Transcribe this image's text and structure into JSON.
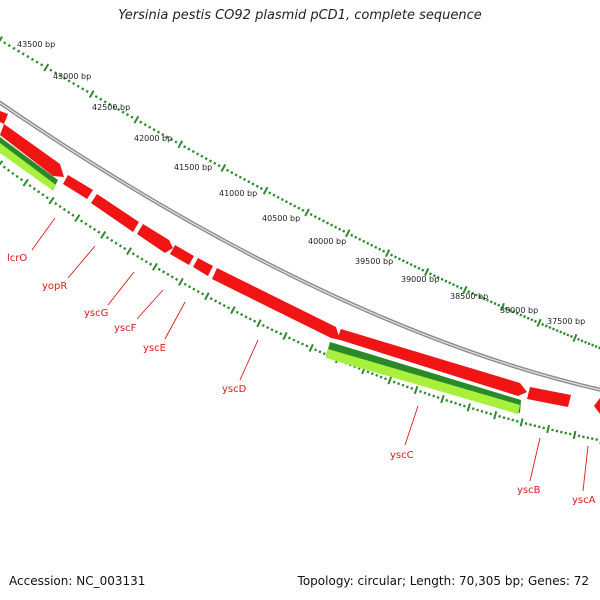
{
  "title": "Yersinia pestis CO92 plasmid pCD1, complete sequence",
  "footer": {
    "accession": "Accession: NC_003131",
    "summary": "Topology: circular; Length: 70,305 bp; Genes: 72"
  },
  "colors": {
    "backbone": "#8c8c8c",
    "gene_forward": "#f01414",
    "gene_reverse_light": "#a8f03c",
    "gene_reverse_dark": "#2a8a2a",
    "scale": "#2d8a2d",
    "label": "#e01818"
  },
  "scale_labels": [
    "43500 bp",
    "43000 bp",
    "42500 bp",
    "42000 bp",
    "41500 bp",
    "41000 bp",
    "40500 bp",
    "40000 bp",
    "39500 bp",
    "39000 bp",
    "38500 bp",
    "38000 bp",
    "37500 bp"
  ],
  "gene_labels": [
    "lcrO",
    "yopR",
    "yscG",
    "yscF",
    "yscE",
    "yscD",
    "yscC",
    "yscB",
    "yscA"
  ]
}
